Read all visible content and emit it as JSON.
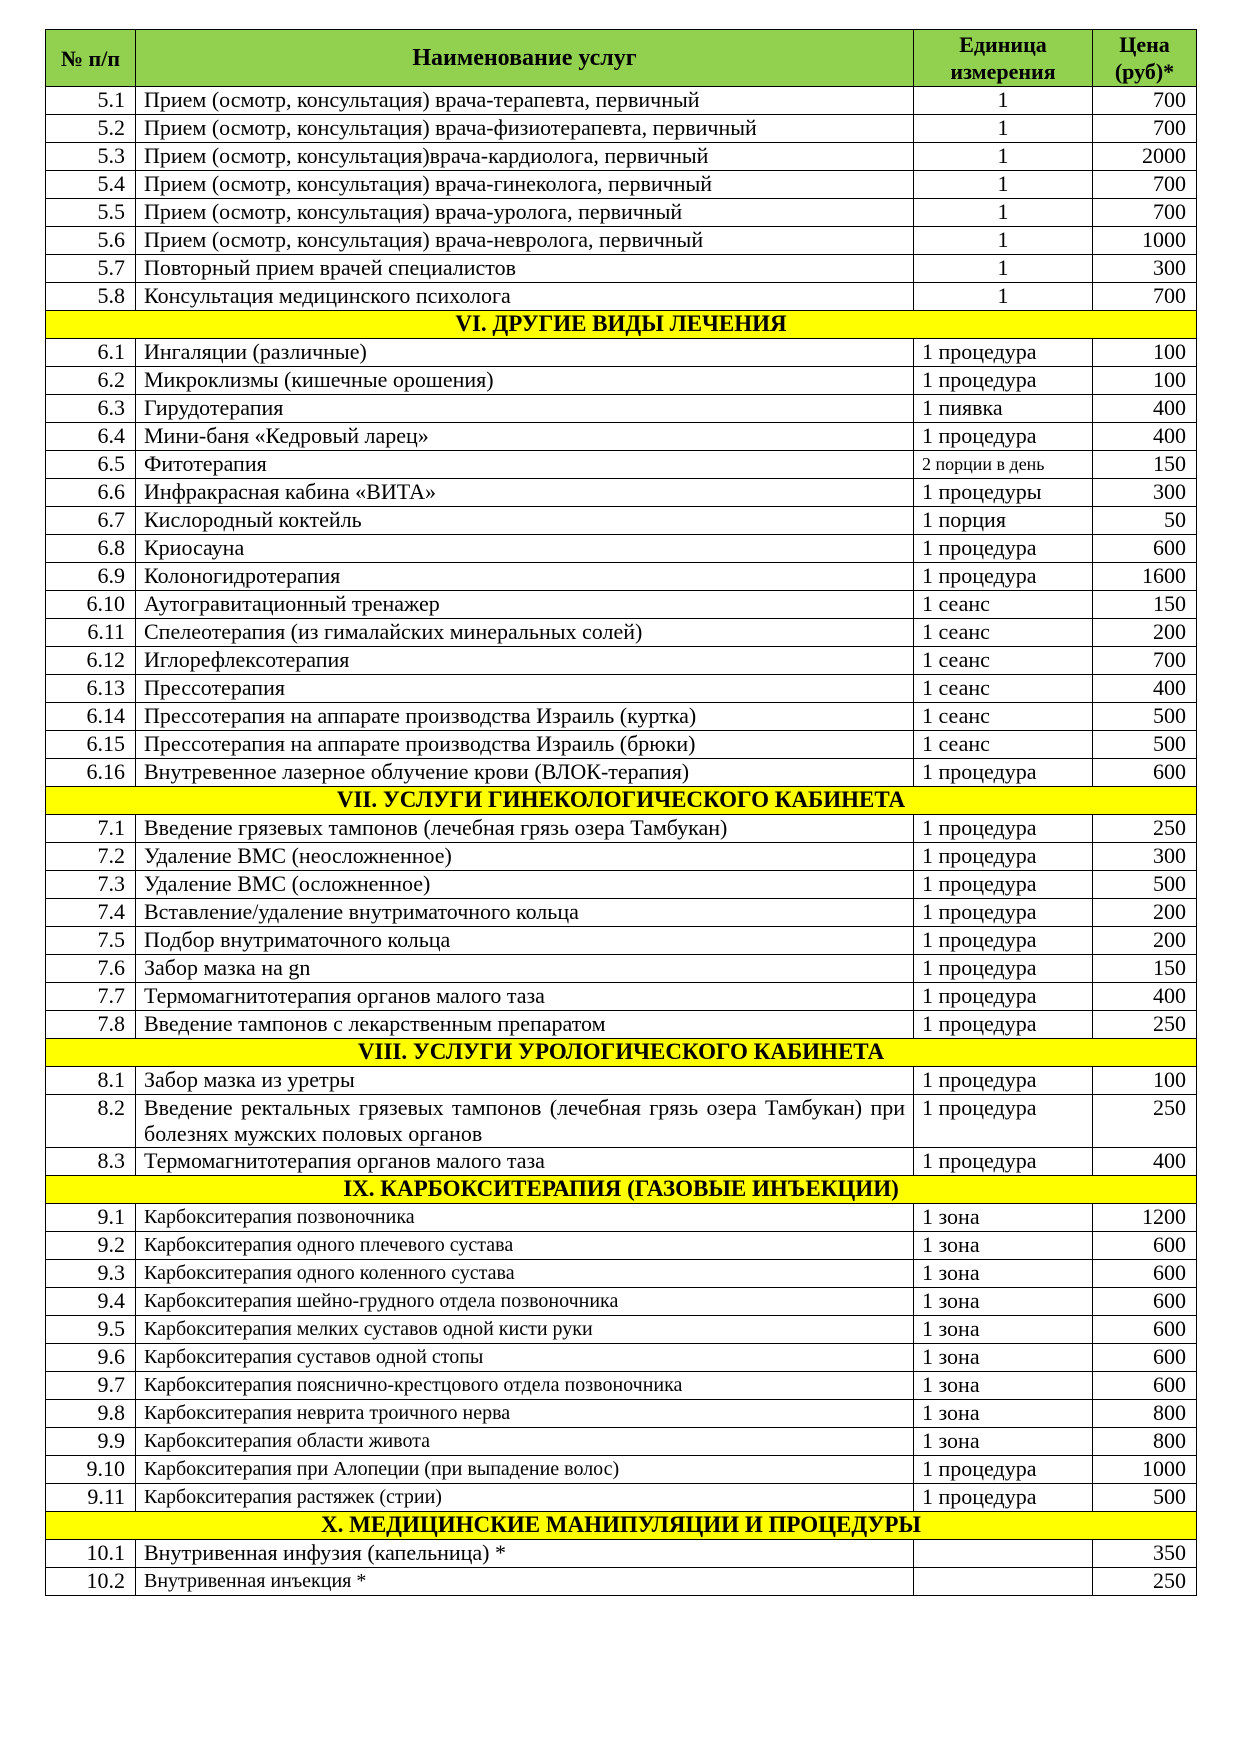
{
  "header": {
    "num": "№ п/п",
    "name": "Наименование услуг",
    "unit": "Единица измерения",
    "price": "Цена (руб)*"
  },
  "colors": {
    "header_bg": "#92d050",
    "section_bg": "#ffff00"
  },
  "rows": [
    {
      "n": "5.1",
      "name": "Прием (осмотр, консультация) врача-терапевта, первичный",
      "unit": "1",
      "price": "700"
    },
    {
      "n": "5.2",
      "name": "Прием (осмотр, консультация) врача-физиотерапевта, первичный",
      "unit": "1",
      "price": "700"
    },
    {
      "n": "5.3",
      "name": "Прием (осмотр, консультация)врача-кардиолога, первичный",
      "unit": "1",
      "price": "2000"
    },
    {
      "n": "5.4",
      "name": "Прием (осмотр, консультация) врача-гинеколога, первичный",
      "unit": "1",
      "price": "700"
    },
    {
      "n": "5.5",
      "name": "Прием (осмотр, консультация) врача-уролога, первичный",
      "unit": "1",
      "price": "700"
    },
    {
      "n": "5.6",
      "name": "Прием (осмотр, консультация) врача-невролога, первичный",
      "unit": "1",
      "price": "1000"
    },
    {
      "n": "5.7",
      "name": "Повторный прием врачей специалистов",
      "unit": "1",
      "price": "300"
    },
    {
      "n": "5.8",
      "name": "Консультация медицинского психолога",
      "unit": "1",
      "price": "700"
    },
    {
      "section": "VI. ДРУГИЕ ВИДЫ ЛЕЧЕНИЯ"
    },
    {
      "n": "6.1",
      "name": "Ингаляции (различные)",
      "unit": "1 процедура",
      "price": "100"
    },
    {
      "n": "6.2",
      "name": "Микроклизмы (кишечные орошения)",
      "unit": "1 процедура",
      "price": "100"
    },
    {
      "n": "6.3",
      "name": "Гирудотерапия",
      "unit": "1 пиявка",
      "price": "400"
    },
    {
      "n": "6.4",
      "name": "Мини-баня «Кедровый ларец»",
      "unit": "1 процедура",
      "price": "400"
    },
    {
      "n": "6.5",
      "name": "Фитотерапия",
      "unit": "2 порции в день",
      "price": "150",
      "small": true
    },
    {
      "n": "6.6",
      "name": "Инфракрасная кабина «ВИТА»",
      "unit": "1 процедуры",
      "price": "300"
    },
    {
      "n": "6.7",
      "name": "Кислородный коктейль",
      "unit": "1 порция",
      "price": "50"
    },
    {
      "n": "6.8",
      "name": "Криосауна",
      "unit": "1 процедура",
      "price": "600"
    },
    {
      "n": "6.9",
      "name": "Колоногидротерапия",
      "unit": "1 процедура",
      "price": "1600"
    },
    {
      "n": "6.10",
      "name": "Аутогравитационный тренажер",
      "unit": "1 сеанс",
      "price": "150"
    },
    {
      "n": "6.11",
      "name": "Спелеотерапия (из гималайских минеральных солей)",
      "unit": "1 сеанс",
      "price": "200"
    },
    {
      "n": "6.12",
      "name": "Иглорефлексотерапия",
      "unit": "1 сеанс",
      "price": "700"
    },
    {
      "n": "6.13",
      "name": "Прессотерапия",
      "unit": "1 сеанс",
      "price": "400"
    },
    {
      "n": "6.14",
      "name": "Прессотерапия на аппарате производства Израиль (куртка)",
      "unit": "1 сеанс",
      "price": "500"
    },
    {
      "n": "6.15",
      "name": "Прессотерапия на аппарате производства Израиль (брюки)",
      "unit": "1 сеанс",
      "price": "500"
    },
    {
      "n": "6.16",
      "name": "Внутревенное лазерное облучение крови (ВЛОК-терапия)",
      "unit": "1 процедура",
      "price": "600"
    },
    {
      "section": "VII. УСЛУГИ ГИНЕКОЛОГИЧЕСКОГО КАБИНЕТА"
    },
    {
      "n": "7.1",
      "name": "Введение грязевых тампонов  (лечебная грязь озера Тамбукан)",
      "unit": "1 процедура",
      "price": "250"
    },
    {
      "n": "7.2",
      "name": "Удаление ВМС (неосложненное)",
      "unit": "1 процедура",
      "price": "300"
    },
    {
      "n": "7.3",
      "name": "Удаление ВМС (осложненное)",
      "unit": "1 процедура",
      "price": "500"
    },
    {
      "n": "7.4",
      "name": "Вставление/удаление внутриматочного кольца",
      "unit": "1 процедура",
      "price": "200"
    },
    {
      "n": "7.5",
      "name": "Подбор внутриматочного кольца",
      "unit": "1 процедура",
      "price": "200"
    },
    {
      "n": "7.6",
      "name": "Забор мазка на gn",
      "unit": "1 процедура",
      "price": "150"
    },
    {
      "n": "7.7",
      "name": "Термомагнитотерапия органов малого таза",
      "unit": "1 процедура",
      "price": "400"
    },
    {
      "n": "7.8",
      "name": "Введение тампонов с лекарственным препаратом",
      "unit": "1 процедура",
      "price": "250"
    },
    {
      "section": "VIII. УСЛУГИ УРОЛОГИЧЕСКОГО КАБИНЕТА"
    },
    {
      "n": "8.1",
      "name": "Забор мазка из уретры",
      "unit": "1 процедура",
      "price": "100"
    },
    {
      "n": "8.2",
      "name": "Введение ректальных грязевых тампонов (лечебная грязь озера Тамбукан) при болезнях мужских половых органов",
      "unit": "1 процедура",
      "price": "250"
    },
    {
      "n": "8.3",
      "name": "Термомагнитотерапия органов малого таза",
      "unit": "1 процедура",
      "price": "400"
    },
    {
      "section": "IX. КАРБОКСИТЕРАПИЯ (ГАЗОВЫЕ ИНЪЕКЦИИ)"
    },
    {
      "n": "9.1",
      "name": "Карбокситерапия позвоночника",
      "unit": "1 зона",
      "price": "1200",
      "sm": true
    },
    {
      "n": "9.2",
      "name": "Карбокситерапия одного плечевого сустава",
      "unit": "1 зона",
      "price": "600",
      "sm": true
    },
    {
      "n": "9.3",
      "name": "Карбокситерапия одного коленного сустава",
      "unit": "1 зона",
      "price": "600",
      "sm": true
    },
    {
      "n": "9.4",
      "name": "Карбокситерапия шейно-грудного отдела позвоночника",
      "unit": "1 зона",
      "price": "600",
      "sm": true
    },
    {
      "n": "9.5",
      "name": "Карбокситерапия мелких суставов одной кисти руки",
      "unit": "1 зона",
      "price": "600",
      "sm": true
    },
    {
      "n": "9.6",
      "name": "Карбокситерапия суставов одной стопы",
      "unit": "1 зона",
      "price": "600",
      "sm": true
    },
    {
      "n": "9.7",
      "name": "Карбокситерапия пояснично-крестцового отдела позвоночника",
      "unit": "1 зона",
      "price": "600",
      "sm": true
    },
    {
      "n": "9.8",
      "name": "Карбокситерапия неврита троичного нерва",
      "unit": "1 зона",
      "price": "800",
      "sm": true
    },
    {
      "n": "9.9",
      "name": "Карбокситерапия области живота",
      "unit": "1 зона",
      "price": "800",
      "sm": true
    },
    {
      "n": "9.10",
      "name": "Карбокситерапия при Алопеции (при выпадение волос)",
      "unit": "1 процедура",
      "price": "1000",
      "sm": true
    },
    {
      "n": "9.11",
      "name": "Карбокситерапия растяжек (стрии)",
      "unit": "1 процедура",
      "price": "500",
      "sm": true
    },
    {
      "section": "X. МЕДИЦИНСКИЕ МАНИПУЛЯЦИИ И ПРОЦЕДУРЫ"
    },
    {
      "n": "10.1",
      "name": " Внутривенная инфузия (капельница) *",
      "unit": "",
      "price": "350"
    },
    {
      "n": "10.2",
      "name": "Внутривенная инъекция *",
      "unit": "",
      "price": "250",
      "sm": true
    }
  ]
}
